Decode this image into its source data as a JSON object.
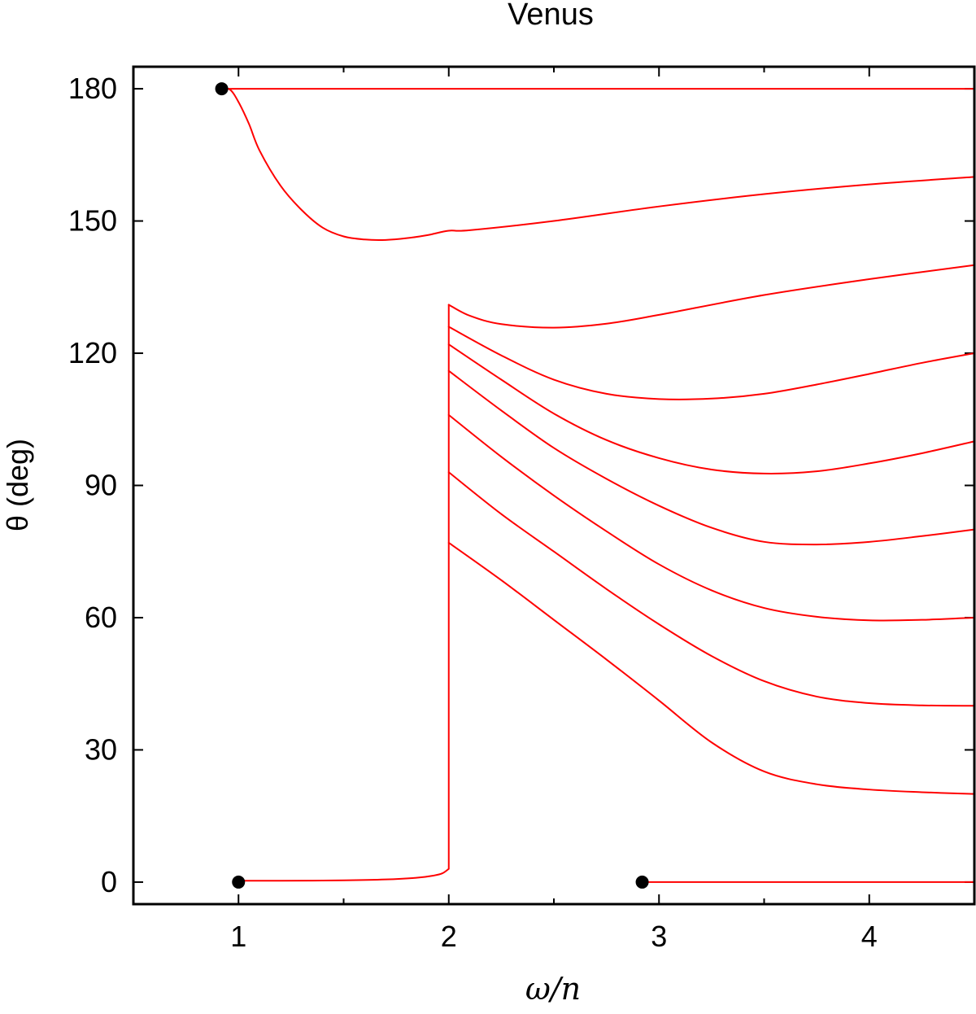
{
  "chart_data": {
    "type": "line",
    "title": "Venus",
    "xlabel": "ω/n",
    "ylabel": "θ (deg)",
    "xlim": [
      0.5,
      4.5
    ],
    "ylim": [
      -5,
      185
    ],
    "xticks": [
      1,
      2,
      3,
      4
    ],
    "yticks": [
      0,
      30,
      60,
      90,
      120,
      150,
      180
    ],
    "grid": false,
    "legend": "none",
    "color": "#ff0000",
    "series": [
      {
        "x": [
          0.92,
          1.0,
          1.2,
          1.5,
          2.0,
          2.5,
          3.0,
          3.5,
          4.0,
          4.5
        ],
        "y": [
          180,
          180,
          180,
          180,
          180,
          180,
          180,
          180,
          180,
          180
        ]
      },
      {
        "x": [
          0.92,
          0.96,
          1.0,
          1.05,
          1.1,
          1.2,
          1.3,
          1.4,
          1.5,
          1.6,
          1.7,
          1.8,
          1.9,
          2.0,
          2.1,
          2.5,
          3.0,
          3.5,
          4.0,
          4.5
        ],
        "y": [
          180,
          179.8,
          177,
          172,
          166,
          158,
          152.5,
          148.5,
          146.5,
          145.8,
          145.7,
          146.1,
          146.8,
          147.8,
          147.9,
          150,
          153.3,
          156.1,
          158.3,
          160
        ]
      },
      {
        "x": [
          2.0,
          2.1,
          2.25,
          2.5,
          2.75,
          3.0,
          3.5,
          4.0,
          4.5
        ],
        "y": [
          131,
          128.5,
          126.6,
          125.8,
          126.7,
          128.7,
          133.2,
          136.8,
          140
        ]
      },
      {
        "x": [
          2.0,
          2.25,
          2.5,
          2.75,
          3.0,
          3.25,
          3.5,
          3.75,
          4.0,
          4.25,
          4.5
        ],
        "y": [
          126,
          119.5,
          114,
          110.8,
          109.6,
          109.7,
          110.8,
          112.9,
          115.3,
          117.8,
          120
        ]
      },
      {
        "x": [
          2.0,
          2.25,
          2.5,
          2.75,
          3.0,
          3.25,
          3.5,
          3.75,
          4.0,
          4.25,
          4.5
        ],
        "y": [
          122,
          114,
          106.3,
          100.3,
          96.2,
          93.6,
          92.7,
          93.2,
          95,
          97.3,
          100
        ]
      },
      {
        "x": [
          2.0,
          2.25,
          2.5,
          2.75,
          3.0,
          3.25,
          3.5,
          3.75,
          4.0,
          4.25,
          4.5
        ],
        "y": [
          116,
          107,
          98.5,
          91.5,
          85.4,
          80.4,
          77.2,
          76.6,
          77.2,
          78.5,
          80
        ]
      },
      {
        "x": [
          2.0,
          2.25,
          2.5,
          2.75,
          3.0,
          3.25,
          3.5,
          3.75,
          4.0,
          4.25,
          4.5
        ],
        "y": [
          106,
          96.5,
          87.7,
          79.6,
          72.1,
          66.2,
          62.2,
          60.2,
          59.4,
          59.5,
          60
        ]
      },
      {
        "x": [
          2.0,
          2.25,
          2.5,
          2.75,
          3.0,
          3.25,
          3.5,
          3.75,
          4.0,
          4.25,
          4.5
        ],
        "y": [
          93,
          83.5,
          75,
          66.5,
          58.5,
          51.3,
          45.6,
          42.1,
          40.6,
          40.1,
          40
        ]
      },
      {
        "x": [
          2.0,
          2.25,
          2.5,
          2.75,
          3.0,
          3.25,
          3.5,
          3.75,
          4.0,
          4.25,
          4.5
        ],
        "y": [
          77,
          68.5,
          59.5,
          50.5,
          41.2,
          31.7,
          25.1,
          22.2,
          21,
          20.4,
          20
        ]
      },
      {
        "x": [
          1.0,
          1.2,
          1.5,
          1.7,
          1.85,
          1.93,
          1.97,
          2.0,
          2.0,
          2.0,
          2.0
        ],
        "y": [
          0.3,
          0.3,
          0.4,
          0.6,
          1.0,
          1.5,
          2.0,
          3.0,
          40,
          100,
          131
        ]
      },
      {
        "x": [
          2.92,
          3.0,
          3.5,
          4.0,
          4.5
        ],
        "y": [
          0,
          0,
          0,
          0,
          0
        ]
      }
    ],
    "markers": [
      {
        "x": 0.92,
        "y": 180
      },
      {
        "x": 1.0,
        "y": 0
      },
      {
        "x": 2.92,
        "y": 0
      }
    ]
  }
}
